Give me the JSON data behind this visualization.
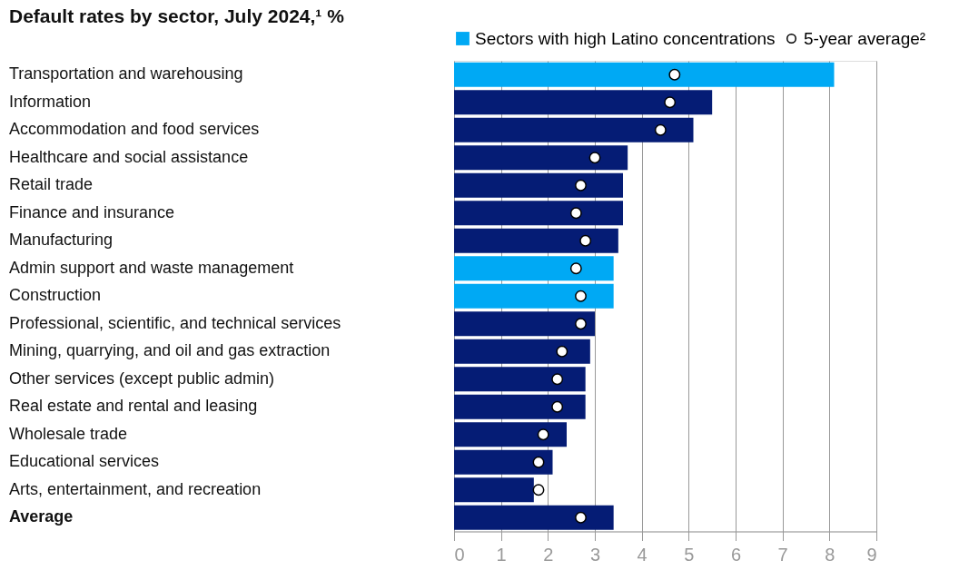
{
  "chart_data": {
    "type": "bar",
    "orientation": "horizontal",
    "title": "Default rates by sector, July 2024,¹ %",
    "categories": [
      "Transportation and warehousing",
      "Information",
      "Accommodation and food services",
      "Healthcare and social assistance",
      "Retail trade",
      "Finance and insurance",
      "Manufacturing",
      "Admin support and waste management",
      "Construction",
      "Professional, scientific, and technical services",
      "Mining, quarrying, and oil and gas extraction",
      "Other services (except public admin)",
      "Real estate and rental and leasing",
      "Wholesale trade",
      "Educational services",
      "Arts, entertainment, and recreation",
      "Average"
    ],
    "series": [
      {
        "name": "Sectors with high Latino concentrations",
        "color": "#00a9f4",
        "values": [
          8.1,
          null,
          null,
          null,
          null,
          null,
          null,
          3.4,
          3.4,
          null,
          null,
          null,
          null,
          null,
          null,
          null,
          null
        ]
      },
      {
        "color": "#051c75",
        "values": [
          null,
          5.5,
          5.1,
          3.7,
          3.6,
          3.6,
          3.5,
          null,
          null,
          3.0,
          2.9,
          2.8,
          2.8,
          2.4,
          2.1,
          1.7,
          3.4
        ]
      },
      {
        "type": "scatter",
        "name": "5-year average²",
        "color": "#ffffff",
        "values": [
          4.7,
          4.6,
          4.4,
          3.0,
          2.7,
          2.6,
          2.8,
          2.6,
          2.7,
          2.7,
          2.3,
          2.2,
          2.2,
          1.9,
          1.8,
          1.8,
          2.7
        ]
      }
    ],
    "xlim": [
      0,
      9
    ],
    "xticks": [
      0,
      1,
      2,
      3,
      4,
      5,
      6,
      7,
      8,
      9
    ],
    "grid": "x",
    "legend": "top",
    "marker": "circle"
  }
}
